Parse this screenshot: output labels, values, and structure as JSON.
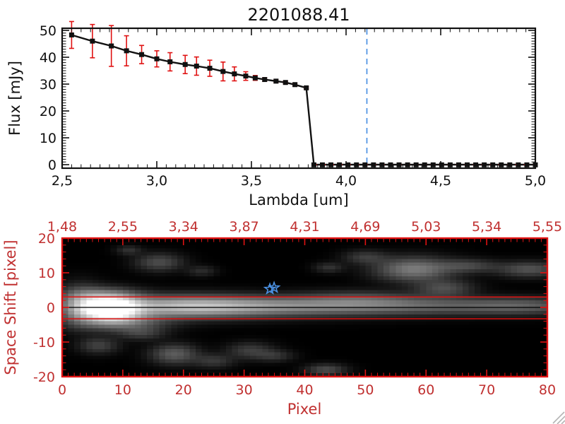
{
  "colors": {
    "plot_black": "#111111",
    "red_line": "#e01212",
    "red_label": "#c03030",
    "blue_marker": "#4a90e2",
    "background": "#ffffff",
    "grip_gray": "#b5b5b5"
  },
  "icons": {
    "resize_grip": "diagonal-lines",
    "star_marker": "five-point-star-outline"
  },
  "chart_data": [
    {
      "type": "line",
      "panel": "spectrum",
      "title": "2201088.41",
      "xlabel": "Lambda [um]",
      "ylabel": "Flux [mJy]",
      "xlim": [
        2.5,
        5.0
      ],
      "ylim": [
        0,
        50
      ],
      "grid": false,
      "x_ticks": {
        "values": [
          2.5,
          3.0,
          3.5,
          4.0,
          4.5,
          5.0
        ],
        "labels": [
          "2,5",
          "3,0",
          "3,5",
          "4,0",
          "4,5",
          "5,0"
        ],
        "minor_step": 0.05
      },
      "y_ticks": {
        "values": [
          0,
          10,
          20,
          30,
          40,
          50
        ],
        "labels": [
          "0",
          "10",
          "20",
          "30",
          "40",
          "50"
        ],
        "minor_step": 1
      },
      "series": [
        {
          "name": "measured-spectrum",
          "marker": "filled-square",
          "color": "#111111",
          "error_color": "#e01212",
          "x": [
            2.55,
            2.66,
            2.76,
            2.84,
            2.92,
            3.0,
            3.07,
            3.15,
            3.21,
            3.28,
            3.35,
            3.41,
            3.47,
            3.52,
            3.57,
            3.63,
            3.68,
            3.73,
            3.79
          ],
          "y": [
            48.3,
            46.0,
            44.2,
            42.4,
            41.0,
            39.4,
            38.3,
            37.3,
            36.7,
            35.9,
            34.7,
            33.8,
            33.0,
            32.3,
            31.7,
            31.1,
            30.6,
            29.8,
            28.6
          ],
          "yerr": [
            5.0,
            6.2,
            7.6,
            5.6,
            3.4,
            3.0,
            3.4,
            3.4,
            3.4,
            3.0,
            3.5,
            2.6,
            1.6,
            0.9,
            0.7,
            0.6,
            0.5,
            0.5,
            0.4
          ]
        },
        {
          "name": "zero-tail",
          "marker": "filled-square",
          "color": "#111111",
          "x": [
            3.83,
            3.875,
            3.92,
            3.965,
            4.01,
            4.055,
            4.1,
            4.145,
            4.19,
            4.235,
            4.28,
            4.325,
            4.37,
            4.415,
            4.46,
            4.505,
            4.55,
            4.595,
            4.64,
            4.685,
            4.73,
            4.775,
            4.82,
            4.865,
            4.91,
            4.955,
            5.0
          ],
          "y_value": 0
        }
      ],
      "annotations": {
        "vline": {
          "x": 4.11,
          "style": "dashed",
          "color": "#4a90e2"
        },
        "hline": {
          "y": 0,
          "x_start": 3.82,
          "x_end": 5.0,
          "style": "dashed",
          "color": "#e01212"
        }
      }
    },
    {
      "type": "heatmap",
      "panel": "spatial-profile",
      "xlabel": "Pixel",
      "ylabel": "Space Shift [pixel]",
      "xlim": [
        0,
        80
      ],
      "ylim": [
        -20,
        20
      ],
      "colormap": "grayscale",
      "x_ticks": {
        "values": [
          0,
          10,
          20,
          30,
          40,
          50,
          60,
          70,
          80
        ],
        "labels": [
          "0",
          "10",
          "20",
          "30",
          "40",
          "50",
          "60",
          "70",
          "80"
        ],
        "minor_step": 1
      },
      "y_ticks": {
        "values": [
          -20,
          -10,
          0,
          10,
          20
        ],
        "labels": [
          "-20",
          "-10",
          "0",
          "10",
          "20"
        ],
        "minor_step": 2
      },
      "top_axis": {
        "tick_values": [
          0,
          10,
          20,
          30,
          40,
          50,
          60,
          70,
          80
        ],
        "labels": [
          "1,48",
          "2,55",
          "3,34",
          "3,87",
          "4,31",
          "4,69",
          "5,03",
          "5,34",
          "5,55"
        ]
      },
      "aperture_lines_shift": [
        3.0,
        -3.3
      ],
      "center_line_shift": 0,
      "star_marker": {
        "pixel": 34.6,
        "shift": 5.5,
        "color": "#4a90e2"
      },
      "features": [
        {
          "x": 8,
          "y": -0.3,
          "sx": 3.2,
          "sy": 2.4,
          "a": 1.15
        },
        {
          "x": 3,
          "y": 0.5,
          "sx": 2.5,
          "sy": 3.5,
          "a": 0.4
        },
        {
          "x": 20,
          "y": 0.2,
          "sx": 9.0,
          "sy": 2.1,
          "a": 0.55
        },
        {
          "x": 36,
          "y": 0.3,
          "sx": 13,
          "sy": 1.9,
          "a": 0.33
        },
        {
          "x": 58,
          "y": 0.4,
          "sx": 14,
          "sy": 1.7,
          "a": 0.24
        },
        {
          "x": 76,
          "y": 0.4,
          "sx": 7.0,
          "sy": 1.6,
          "a": 0.2
        },
        {
          "x": 10,
          "y": -4.2,
          "sx": 5.0,
          "sy": 1.8,
          "a": 0.3
        },
        {
          "x": 7,
          "y": 3.5,
          "sx": 4.0,
          "sy": 1.6,
          "a": 0.22
        },
        {
          "x": 16,
          "y": 13,
          "sx": 2.6,
          "sy": 1.7,
          "a": 0.22
        },
        {
          "x": 11,
          "y": 16.5,
          "sx": 1.4,
          "sy": 0.9,
          "a": 0.13
        },
        {
          "x": 23,
          "y": 10.5,
          "sx": 1.6,
          "sy": 1.0,
          "a": 0.11
        },
        {
          "x": 50,
          "y": 14.5,
          "sx": 2.4,
          "sy": 1.3,
          "a": 0.16
        },
        {
          "x": 44,
          "y": 11.5,
          "sx": 1.6,
          "sy": 1.0,
          "a": 0.13
        },
        {
          "x": 58,
          "y": 11,
          "sx": 4.2,
          "sy": 2.3,
          "a": 0.4
        },
        {
          "x": 67,
          "y": 12,
          "sx": 3.2,
          "sy": 1.3,
          "a": 0.19
        },
        {
          "x": 77,
          "y": 11,
          "sx": 3.6,
          "sy": 1.5,
          "a": 0.24
        },
        {
          "x": 63,
          "y": 5.5,
          "sx": 3.2,
          "sy": 1.6,
          "a": 0.22
        },
        {
          "x": 49,
          "y": 2.5,
          "sx": 7.0,
          "sy": 1.6,
          "a": 0.16
        },
        {
          "x": 18.5,
          "y": -13.5,
          "sx": 2.6,
          "sy": 1.9,
          "a": 0.28
        },
        {
          "x": 13,
          "y": -7.5,
          "sx": 2.6,
          "sy": 1.3,
          "a": 0.16
        },
        {
          "x": 6,
          "y": -11,
          "sx": 2.2,
          "sy": 1.6,
          "a": 0.18
        },
        {
          "x": 25,
          "y": -15.5,
          "sx": 2.2,
          "sy": 1.3,
          "a": 0.15
        },
        {
          "x": 31,
          "y": -12.5,
          "sx": 2.6,
          "sy": 1.6,
          "a": 0.17
        },
        {
          "x": 43.5,
          "y": -18,
          "sx": 2.2,
          "sy": 1.1,
          "a": 0.22
        },
        {
          "x": 35,
          "y": -14,
          "sx": 2.1,
          "sy": 1.1,
          "a": 0.13
        }
      ]
    }
  ]
}
